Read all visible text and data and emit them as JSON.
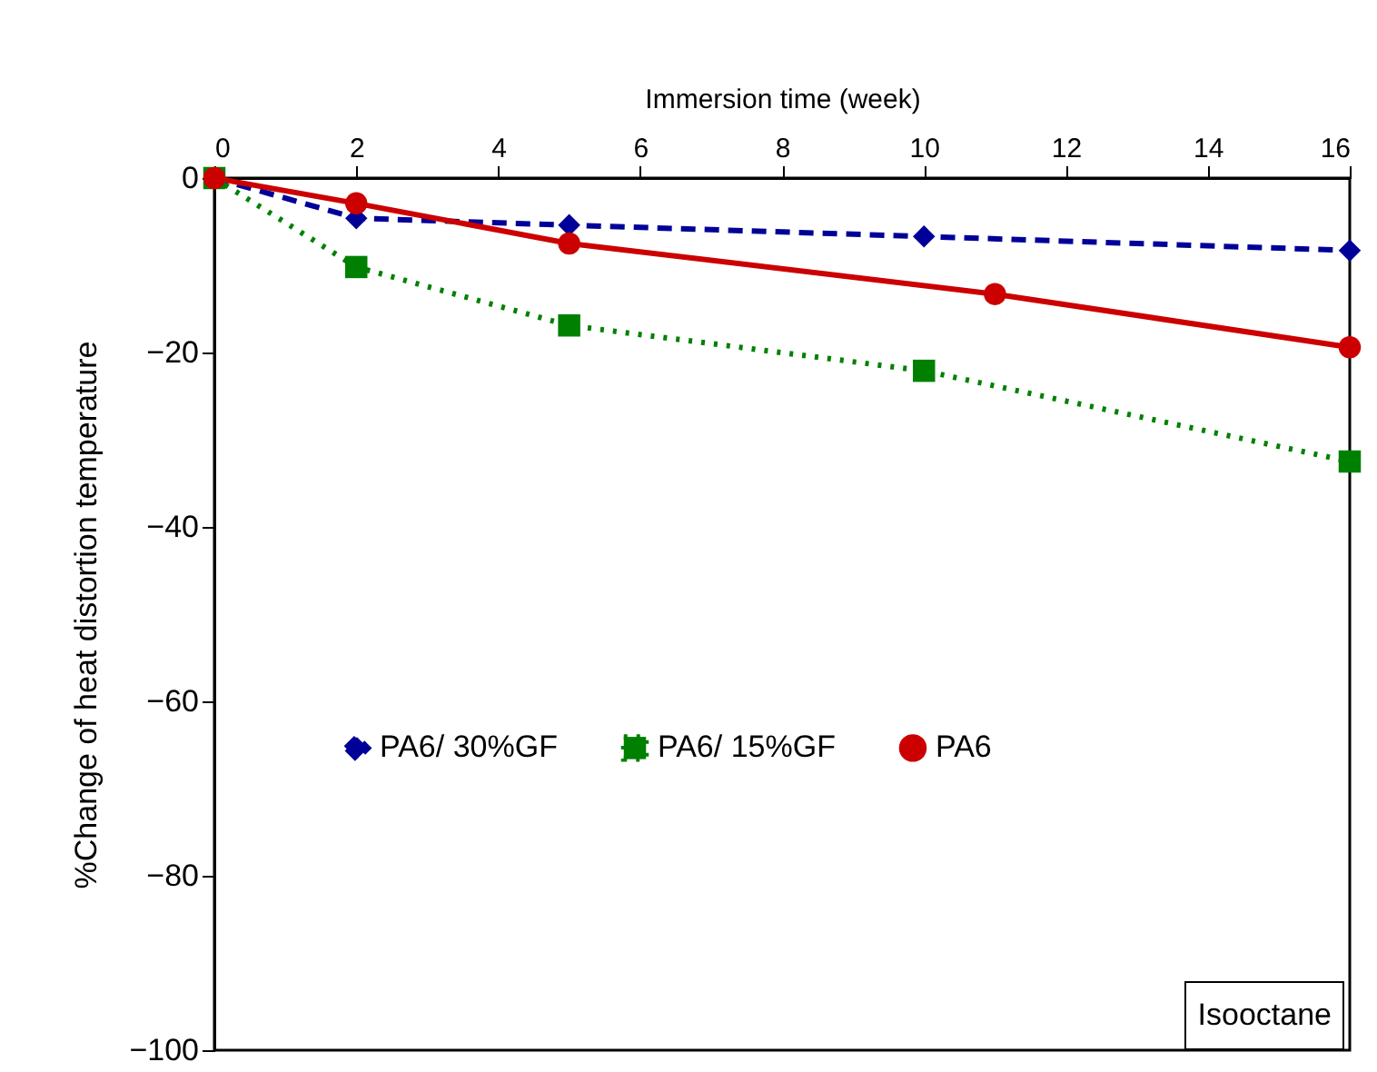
{
  "chart_data": {
    "type": "line",
    "xlabel": "Immersion time (week)",
    "ylabel": "%Change of heat distortion temperature",
    "xlim": [
      0,
      16
    ],
    "xticks": [
      0,
      2,
      4,
      6,
      8,
      10,
      12,
      14,
      16
    ],
    "ylim": [
      -100,
      0
    ],
    "yticks": [
      -100,
      -80,
      -60,
      -40,
      -20,
      0
    ],
    "grid": false,
    "legend": "bottom",
    "annotations": [
      "Isooctane"
    ],
    "series": [
      {
        "name": "PA6/ 30%GF",
        "color": "#000099",
        "x": [
          0,
          2,
          5,
          10,
          16
        ],
        "values": [
          0,
          -4.6,
          -5.4,
          -6.7,
          -8.3
        ],
        "marker": "diamond",
        "line_style": "dashed"
      },
      {
        "name": "PA6/ 15%GF",
        "color": "#008000",
        "x": [
          0,
          2,
          5,
          10,
          16
        ],
        "values": [
          0,
          -10.2,
          -16.9,
          -22.1,
          -32.5
        ],
        "marker": "square",
        "line_style": "dotted"
      },
      {
        "name": "PA6",
        "color": "#cc0000",
        "x": [
          0,
          2,
          5,
          11,
          16
        ],
        "values": [
          0,
          -2.9,
          -7.5,
          -13.3,
          -19.4
        ],
        "marker": "circle",
        "line_style": "solid"
      }
    ]
  }
}
